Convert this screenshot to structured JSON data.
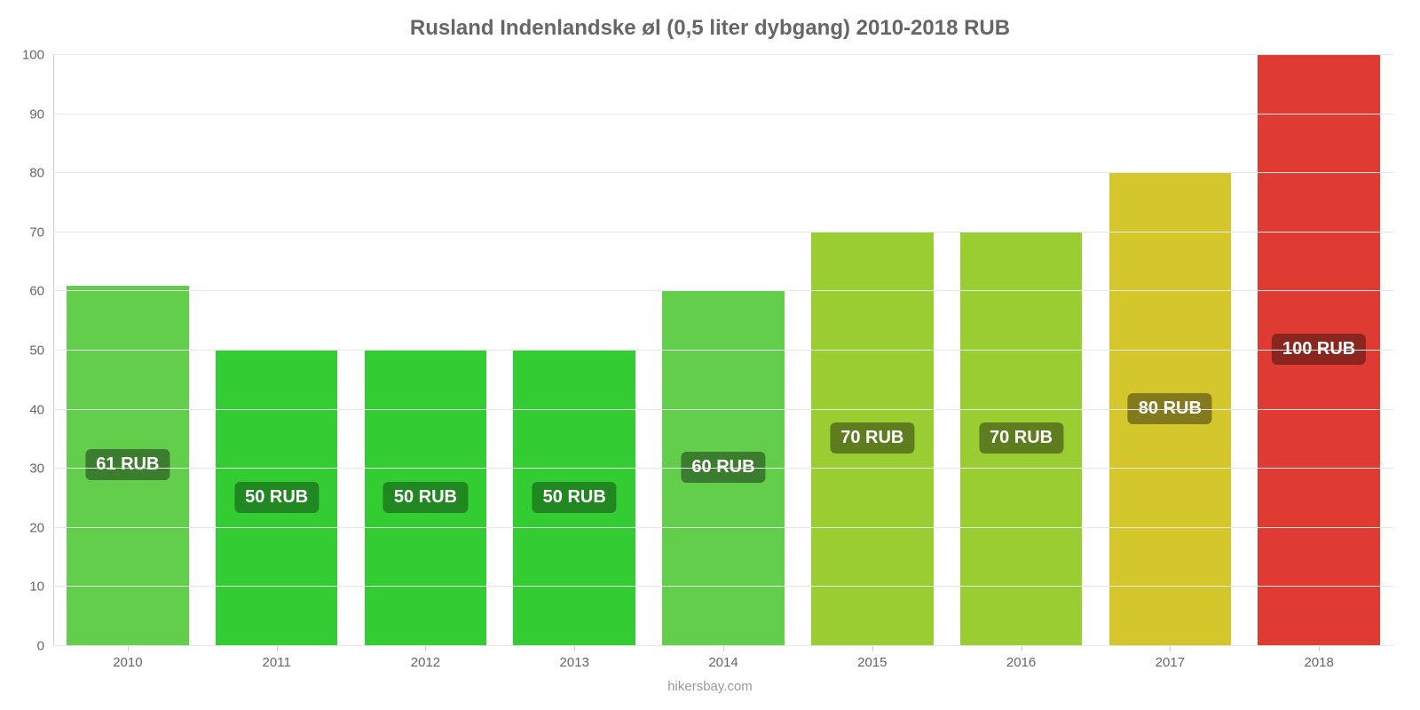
{
  "chart": {
    "type": "bar",
    "title": "Rusland Indenlandske øl (0,5 liter dybgang) 2010-2018 RUB",
    "title_fontsize": 24,
    "title_color": "#666666",
    "source": "hikersbay.com",
    "source_color": "#999999",
    "background_color": "#ffffff",
    "grid_color": "#e6e6e6",
    "axis_color": "#cccccc",
    "tick_label_color": "#666666",
    "tick_fontsize": 15,
    "bar_label_fontsize": 20,
    "bar_label_text_color": "#ffffff",
    "ylim": [
      0,
      100
    ],
    "yticks": [
      0,
      10,
      20,
      30,
      40,
      50,
      60,
      70,
      80,
      90,
      100
    ],
    "categories": [
      "2010",
      "2011",
      "2012",
      "2013",
      "2014",
      "2015",
      "2016",
      "2017",
      "2018"
    ],
    "values": [
      61,
      50,
      50,
      50,
      60,
      70,
      70,
      80,
      100
    ],
    "value_labels": [
      "61 RUB",
      "50 RUB",
      "50 RUB",
      "50 RUB",
      "60 RUB",
      "70 RUB",
      "70 RUB",
      "80 RUB",
      "100 RUB"
    ],
    "bar_colors": [
      "#63ce4b",
      "#33cc33",
      "#33cc33",
      "#33cc33",
      "#63ce4b",
      "#9acd32",
      "#9acd32",
      "#d4c72b",
      "#e03b33"
    ],
    "bar_label_bg_colors": [
      "#3b7d2e",
      "#218721",
      "#218721",
      "#218721",
      "#3b7d2e",
      "#5e7d1f",
      "#5e7d1f",
      "#827a1c",
      "#8a2520"
    ],
    "bar_width_pct": 82
  }
}
